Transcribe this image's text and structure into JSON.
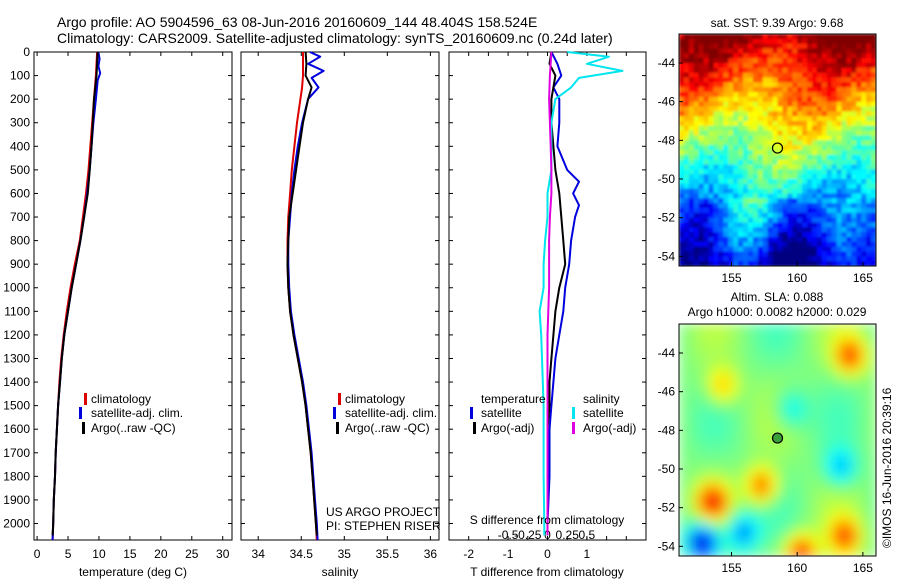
{
  "title": {
    "line1": "Argo profile: AO 5904596_63 08-Jun-2016 20160609_144 48.404S 158.524E",
    "line2": "Climatology: CARS2009. Satellite-adjusted climatology: synTS_20160609.nc (0.24d later)"
  },
  "colors": {
    "climatology": "#dd0000",
    "satellite": "#0000dd",
    "argo": "#000000",
    "cyan": "#00e5ee",
    "magenta": "#e000e0"
  },
  "chart_data": [
    {
      "type": "line",
      "id": "temperature",
      "xlabel": "temperature (deg C)",
      "xlim": [
        -0.5,
        31.5
      ],
      "xticks": [
        0,
        5,
        10,
        15,
        20,
        25,
        30
      ],
      "ylim": [
        0,
        2070
      ],
      "yticks": [
        0,
        100,
        200,
        300,
        400,
        500,
        600,
        700,
        800,
        900,
        1000,
        1100,
        1200,
        1300,
        1400,
        1500,
        1600,
        1700,
        1800,
        1900,
        2000
      ],
      "legend": [
        "climatology",
        "satellite-adj. clim.",
        "Argo(..raw -QC)"
      ],
      "series": [
        {
          "name": "climatology",
          "color": "#dd0000",
          "depth": [
            0,
            50,
            100,
            200,
            300,
            400,
            500,
            600,
            700,
            800,
            900,
            1000,
            1100,
            1200,
            1300,
            1400,
            1500,
            1600,
            1700,
            1800,
            1900,
            2000,
            2070
          ],
          "values": [
            9.7,
            9.6,
            9.5,
            9.2,
            8.9,
            8.6,
            8.3,
            7.9,
            7.4,
            6.9,
            6.1,
            5.4,
            4.8,
            4.3,
            3.9,
            3.6,
            3.4,
            3.2,
            3.0,
            2.9,
            2.7,
            2.6,
            2.5
          ]
        },
        {
          "name": "satellite-adj. clim.",
          "color": "#0000dd",
          "depth": [
            0,
            30,
            60,
            90,
            120,
            200,
            300,
            400,
            500,
            600,
            700,
            800,
            900,
            1000,
            1100,
            1200,
            1300,
            1400,
            1500,
            1600,
            1700,
            1800,
            1900,
            2000,
            2070
          ],
          "values": [
            9.9,
            10.1,
            9.9,
            10.2,
            9.8,
            9.5,
            9.1,
            8.8,
            8.5,
            8.1,
            7.6,
            7.0,
            6.3,
            5.6,
            5.0,
            4.4,
            4.0,
            3.7,
            3.4,
            3.2,
            3.0,
            2.9,
            2.7,
            2.6,
            2.5
          ]
        },
        {
          "name": "Argo(..raw -QC)",
          "color": "#000000",
          "depth": [
            0,
            50,
            100,
            150,
            200,
            300,
            400,
            500,
            600,
            700,
            800,
            900,
            1000,
            1100,
            1200,
            1300,
            1400,
            1500,
            1600,
            1700,
            1800,
            1900,
            2000,
            2050
          ],
          "values": [
            9.8,
            9.7,
            9.6,
            9.4,
            9.2,
            9.0,
            8.8,
            8.5,
            8.2,
            7.6,
            7.0,
            6.3,
            5.6,
            5.0,
            4.4,
            4.0,
            3.7,
            3.4,
            3.2,
            3.0,
            2.9,
            2.7,
            2.6,
            2.5
          ]
        }
      ]
    },
    {
      "type": "line",
      "id": "salinity",
      "xlabel": "salinity",
      "xlim": [
        33.8,
        36.1
      ],
      "xticks": [
        34,
        34.5,
        35,
        35.5,
        36
      ],
      "ylim": [
        0,
        2070
      ],
      "legend": [
        "climatology",
        "satellite-adj. clim.",
        "Argo(..raw -QC)"
      ],
      "annotation": [
        "US ARGO PROJECT",
        "PI: STEPHEN RISER"
      ],
      "series": [
        {
          "name": "climatology",
          "color": "#dd0000",
          "depth": [
            0,
            50,
            100,
            150,
            200,
            300,
            400,
            500,
            600,
            700,
            800,
            900,
            1000,
            1100,
            1200,
            1300,
            1400,
            1500,
            1600,
            1700,
            1800,
            1900,
            2000,
            2070
          ],
          "values": [
            34.52,
            34.52,
            34.52,
            34.51,
            34.49,
            34.45,
            34.42,
            34.39,
            34.37,
            34.35,
            34.34,
            34.34,
            34.35,
            34.37,
            34.41,
            34.46,
            34.51,
            34.55,
            34.58,
            34.61,
            34.63,
            34.65,
            34.67,
            34.68
          ]
        },
        {
          "name": "satellite-adj. clim.",
          "color": "#0000dd",
          "depth": [
            0,
            20,
            50,
            80,
            110,
            150,
            200,
            300,
            400,
            500,
            600,
            700,
            800,
            900,
            1000,
            1100,
            1200,
            1300,
            1400,
            1500,
            1600,
            1700,
            1800,
            1900,
            2000,
            2070
          ],
          "values": [
            34.6,
            34.72,
            34.58,
            34.76,
            34.62,
            34.7,
            34.58,
            34.51,
            34.46,
            34.42,
            34.39,
            34.37,
            34.35,
            34.35,
            34.36,
            34.38,
            34.42,
            34.47,
            34.52,
            34.56,
            34.59,
            34.62,
            34.64,
            34.66,
            34.68,
            34.69
          ]
        },
        {
          "name": "Argo(..raw -QC)",
          "color": "#000000",
          "depth": [
            0,
            50,
            100,
            150,
            200,
            300,
            400,
            500,
            600,
            700,
            800,
            900,
            1000,
            1100,
            1200,
            1300,
            1400,
            1500,
            1600,
            1700,
            1800,
            1900,
            2000,
            2050
          ],
          "values": [
            34.55,
            34.56,
            34.55,
            34.62,
            34.58,
            34.52,
            34.48,
            34.44,
            34.4,
            34.36,
            34.35,
            34.34,
            34.35,
            34.37,
            34.41,
            34.46,
            34.51,
            34.55,
            34.58,
            34.61,
            34.63,
            34.65,
            34.67,
            34.68
          ]
        }
      ]
    },
    {
      "type": "line",
      "id": "differences",
      "xlabel": "T difference from climatology",
      "xlabel_top": "S difference from climatology",
      "xlim": [
        -2.5,
        2.5
      ],
      "xticks": [
        -2,
        -1.5,
        -1,
        -0.5,
        0,
        0.5,
        1,
        1.5,
        2
      ],
      "xticklabels": [
        "-2",
        "",
        "-1",
        "",
        "0",
        "",
        "1",
        "",
        ""
      ],
      "sticks": [
        -0.5,
        -0.25,
        0,
        0.25,
        0.5
      ],
      "sticklabels": [
        "-0.5",
        "-0.25",
        "0",
        "0.25",
        "0.5"
      ],
      "ylim": [
        0,
        2070
      ],
      "legend_headers": [
        "temperature",
        "salinity"
      ],
      "legend": [
        "satellite",
        "Argo(-adj)",
        "satellite",
        "Argo(-adj)"
      ],
      "series": [
        {
          "name": "T satellite",
          "color": "#0000dd",
          "depth": [
            0,
            50,
            100,
            150,
            200,
            300,
            400,
            500,
            550,
            600,
            650,
            700,
            800,
            900,
            1000,
            1100,
            1200,
            1300,
            1400,
            1500,
            1600,
            1800,
            2000,
            2050
          ],
          "values": [
            0.1,
            0.25,
            0.35,
            0.15,
            0.3,
            0.3,
            0.25,
            0.5,
            0.8,
            0.65,
            0.8,
            0.7,
            0.6,
            0.55,
            0.45,
            0.4,
            0.3,
            0.2,
            0.15,
            0.1,
            0.05,
            0.05,
            0.0,
            0.0
          ]
        },
        {
          "name": "T Argo(-adj)",
          "color": "#000000",
          "depth": [
            0,
            50,
            100,
            200,
            300,
            400,
            500,
            600,
            700,
            800,
            900,
            1000,
            1100,
            1200,
            1300,
            1400,
            1500,
            1600,
            1800,
            2000,
            2050
          ],
          "values": [
            0.1,
            0.05,
            0.2,
            0.1,
            0.1,
            0.15,
            0.2,
            0.3,
            0.35,
            0.4,
            0.45,
            0.3,
            0.2,
            0.15,
            0.1,
            0.05,
            0.05,
            0.0,
            0.0,
            0.0,
            0.0
          ]
        },
        {
          "name": "S satellite",
          "color": "#00e5ee",
          "depth": [
            0,
            20,
            50,
            80,
            110,
            150,
            200,
            300,
            400,
            500,
            600,
            700,
            800,
            900,
            1000,
            1100,
            1200,
            1300,
            1400,
            1500,
            1600,
            1800,
            2000,
            2050
          ],
          "values": [
            0.25,
            0.78,
            0.5,
            0.95,
            0.4,
            0.3,
            0.1,
            0.05,
            0.05,
            0.05,
            0.0,
            0.0,
            -0.03,
            -0.05,
            -0.05,
            -0.1,
            -0.08,
            -0.07,
            -0.06,
            -0.05,
            -0.05,
            -0.05,
            -0.04,
            -0.04
          ]
        },
        {
          "name": "S Argo(-adj)",
          "color": "#e000e0",
          "depth": [
            0,
            100,
            200,
            300,
            400,
            500,
            600,
            700,
            800,
            900,
            1000,
            1100,
            1200,
            1300,
            1400,
            1500,
            1600,
            1800,
            2000,
            2050
          ],
          "values": [
            0.05,
            0.03,
            0.02,
            0.03,
            0.04,
            0.05,
            0.05,
            0.03,
            0.02,
            0.02,
            0.02,
            0.01,
            0.0,
            0.0,
            0.0,
            0.0,
            0.0,
            0.0,
            0.0,
            0.0
          ]
        }
      ]
    },
    {
      "type": "heatmap",
      "id": "sst-map",
      "title": "sat. SST: 9.39 Argo: 9.68",
      "xlim": [
        151,
        166
      ],
      "ylim": [
        -54.5,
        -42.5
      ],
      "xticks": [
        155,
        160,
        165
      ],
      "yticks": [
        -44,
        -46,
        -48,
        -50,
        -52,
        -54
      ],
      "marker": {
        "lon": 158.5,
        "lat": -48.4
      }
    },
    {
      "type": "heatmap",
      "id": "sla-map",
      "title_lines": [
        "Altim. SLA: 0.088",
        "Argo h1000: 0.0082 h2000: 0.029"
      ],
      "xlim": [
        151,
        166
      ],
      "ylim": [
        -54.5,
        -42.5
      ],
      "xticks": [
        155,
        160,
        165
      ],
      "yticks": [
        -44,
        -46,
        -48,
        -50,
        -52,
        -54
      ],
      "marker": {
        "lon": 158.5,
        "lat": -48.4
      }
    }
  ],
  "credit": "©IMOS 16-Jun-2016 20:39:16"
}
